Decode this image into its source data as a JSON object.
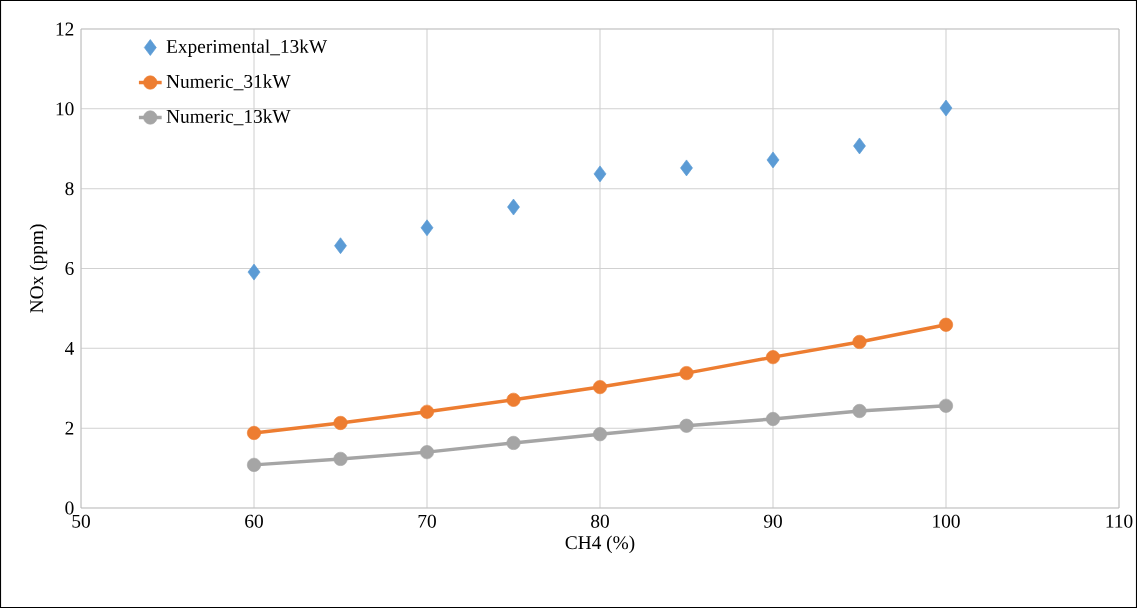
{
  "chart_data": {
    "type": "line",
    "xlabel": "CH4 (%)",
    "ylabel": "NOx (ppm)",
    "x": [
      60,
      65,
      70,
      75,
      80,
      85,
      90,
      95,
      100
    ],
    "series": [
      {
        "name": "Experimental_13kW",
        "type": "scatter",
        "marker": "diamond",
        "color": "#5b9bd5",
        "values": [
          5.91,
          6.57,
          7.02,
          7.54,
          8.37,
          8.52,
          8.72,
          9.07,
          10.02
        ]
      },
      {
        "name": "Numeric_31kW",
        "marker": "circle",
        "color": "#ed7d31",
        "values": [
          1.88,
          2.13,
          2.41,
          2.71,
          3.03,
          3.38,
          3.78,
          4.16,
          4.59
        ]
      },
      {
        "name": "Numeric_13kW",
        "marker": "circle",
        "color": "#a5a5a5",
        "values": [
          1.08,
          1.23,
          1.4,
          1.63,
          1.85,
          2.06,
          2.23,
          2.43,
          2.56
        ]
      }
    ],
    "xlim": [
      50,
      110
    ],
    "xticks": [
      50,
      60,
      70,
      80,
      90,
      100,
      110
    ],
    "ylim": [
      0,
      12
    ],
    "yticks": [
      0,
      2,
      4,
      6,
      8,
      10,
      12
    ],
    "grid": true,
    "legend": "top left"
  }
}
